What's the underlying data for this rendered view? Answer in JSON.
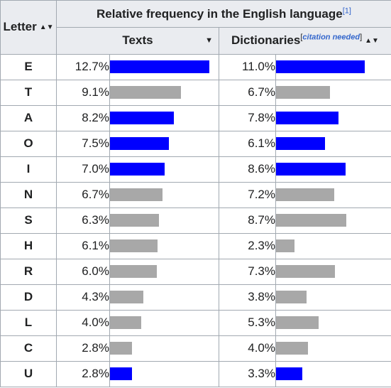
{
  "table": {
    "letter_header": "Letter",
    "group_header": "Relative frequency in the English language",
    "group_ref": "[1]",
    "texts_header": "Texts",
    "dict_header": "Dictionaries",
    "dict_citation_open": "[",
    "dict_citation": "citation needed",
    "dict_citation_close": "]",
    "sort_icon": "sort-up-down-icon",
    "sort_desc_icon": "sort-down-icon",
    "bar_max_percent": 12.7,
    "colors": {
      "highlight": "#0000ff",
      "normal": "#a8a8a8"
    },
    "rows": [
      {
        "letter": "E",
        "texts": "12.7%",
        "texts_value": 12.7,
        "texts_color": "#0000ff",
        "dict": "11.0%",
        "dict_value": 11.0,
        "dict_color": "#0000ff"
      },
      {
        "letter": "T",
        "texts": "9.1%",
        "texts_value": 9.1,
        "texts_color": "#a8a8a8",
        "dict": "6.7%",
        "dict_value": 6.7,
        "dict_color": "#a8a8a8"
      },
      {
        "letter": "A",
        "texts": "8.2%",
        "texts_value": 8.2,
        "texts_color": "#0000ff",
        "dict": "7.8%",
        "dict_value": 7.8,
        "dict_color": "#0000ff"
      },
      {
        "letter": "O",
        "texts": "7.5%",
        "texts_value": 7.5,
        "texts_color": "#0000ff",
        "dict": "6.1%",
        "dict_value": 6.1,
        "dict_color": "#0000ff"
      },
      {
        "letter": "I",
        "texts": "7.0%",
        "texts_value": 7.0,
        "texts_color": "#0000ff",
        "dict": "8.6%",
        "dict_value": 8.6,
        "dict_color": "#0000ff"
      },
      {
        "letter": "N",
        "texts": "6.7%",
        "texts_value": 6.7,
        "texts_color": "#a8a8a8",
        "dict": "7.2%",
        "dict_value": 7.2,
        "dict_color": "#a8a8a8"
      },
      {
        "letter": "S",
        "texts": "6.3%",
        "texts_value": 6.3,
        "texts_color": "#a8a8a8",
        "dict": "8.7%",
        "dict_value": 8.7,
        "dict_color": "#a8a8a8"
      },
      {
        "letter": "H",
        "texts": "6.1%",
        "texts_value": 6.1,
        "texts_color": "#a8a8a8",
        "dict": "2.3%",
        "dict_value": 2.3,
        "dict_color": "#a8a8a8"
      },
      {
        "letter": "R",
        "texts": "6.0%",
        "texts_value": 6.0,
        "texts_color": "#a8a8a8",
        "dict": "7.3%",
        "dict_value": 7.3,
        "dict_color": "#a8a8a8"
      },
      {
        "letter": "D",
        "texts": "4.3%",
        "texts_value": 4.3,
        "texts_color": "#a8a8a8",
        "dict": "3.8%",
        "dict_value": 3.8,
        "dict_color": "#a8a8a8"
      },
      {
        "letter": "L",
        "texts": "4.0%",
        "texts_value": 4.0,
        "texts_color": "#a8a8a8",
        "dict": "5.3%",
        "dict_value": 5.3,
        "dict_color": "#a8a8a8"
      },
      {
        "letter": "C",
        "texts": "2.8%",
        "texts_value": 2.8,
        "texts_color": "#a8a8a8",
        "dict": "4.0%",
        "dict_value": 4.0,
        "dict_color": "#a8a8a8"
      },
      {
        "letter": "U",
        "texts": "2.8%",
        "texts_value": 2.8,
        "texts_color": "#0000ff",
        "dict": "3.3%",
        "dict_value": 3.3,
        "dict_color": "#0000ff"
      }
    ]
  }
}
